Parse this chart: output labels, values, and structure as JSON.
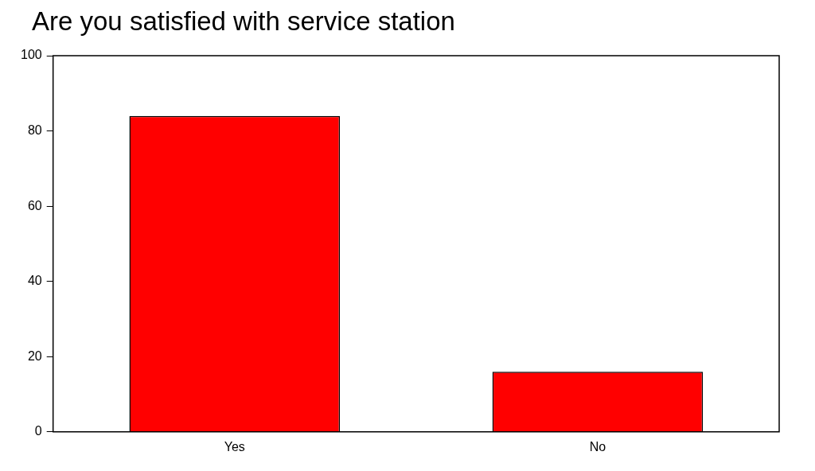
{
  "chart_data": {
    "type": "bar",
    "title": "Are you satisfied with service station",
    "categories": [
      "Yes",
      "No"
    ],
    "values": [
      84,
      16
    ],
    "color": "#ff0000",
    "ylim": [
      0,
      100
    ],
    "yticks": [
      0,
      20,
      40,
      60,
      80,
      100
    ],
    "grid": false,
    "legend": false
  }
}
